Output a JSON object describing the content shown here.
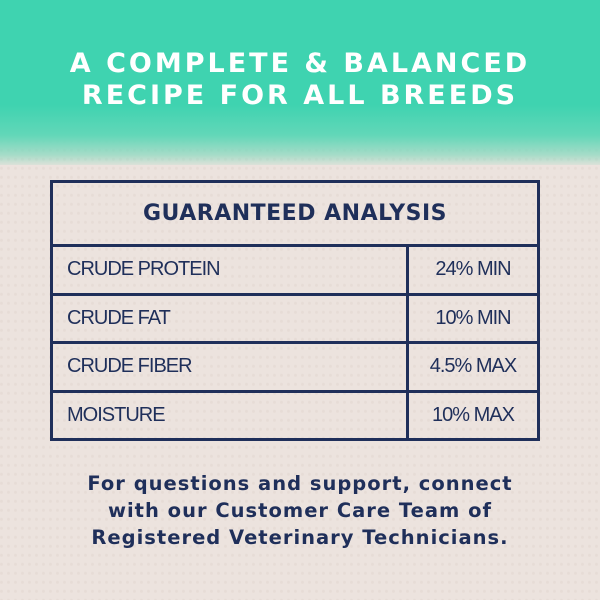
{
  "headline": {
    "line1": "A COMPLETE & BALANCED",
    "line2": "RECIPE FOR ALL BREEDS"
  },
  "table": {
    "title": "GUARANTEED ANALYSIS",
    "rows": [
      {
        "name": "CRUDE PROTEIN",
        "value": "24% MIN"
      },
      {
        "name": "CRUDE FAT",
        "value": "10% MIN"
      },
      {
        "name": "CRUDE FIBER",
        "value": "4.5% MAX"
      },
      {
        "name": "MOISTURE",
        "value": "10% MAX"
      }
    ]
  },
  "footer": {
    "line1": "For questions and support, connect",
    "line2": "with our Customer Care Team of",
    "line3": "Registered Veterinary Technicians."
  },
  "colors": {
    "teal": "#3fd3b0",
    "navy": "#1f2f5a",
    "background": "#ece3de"
  }
}
